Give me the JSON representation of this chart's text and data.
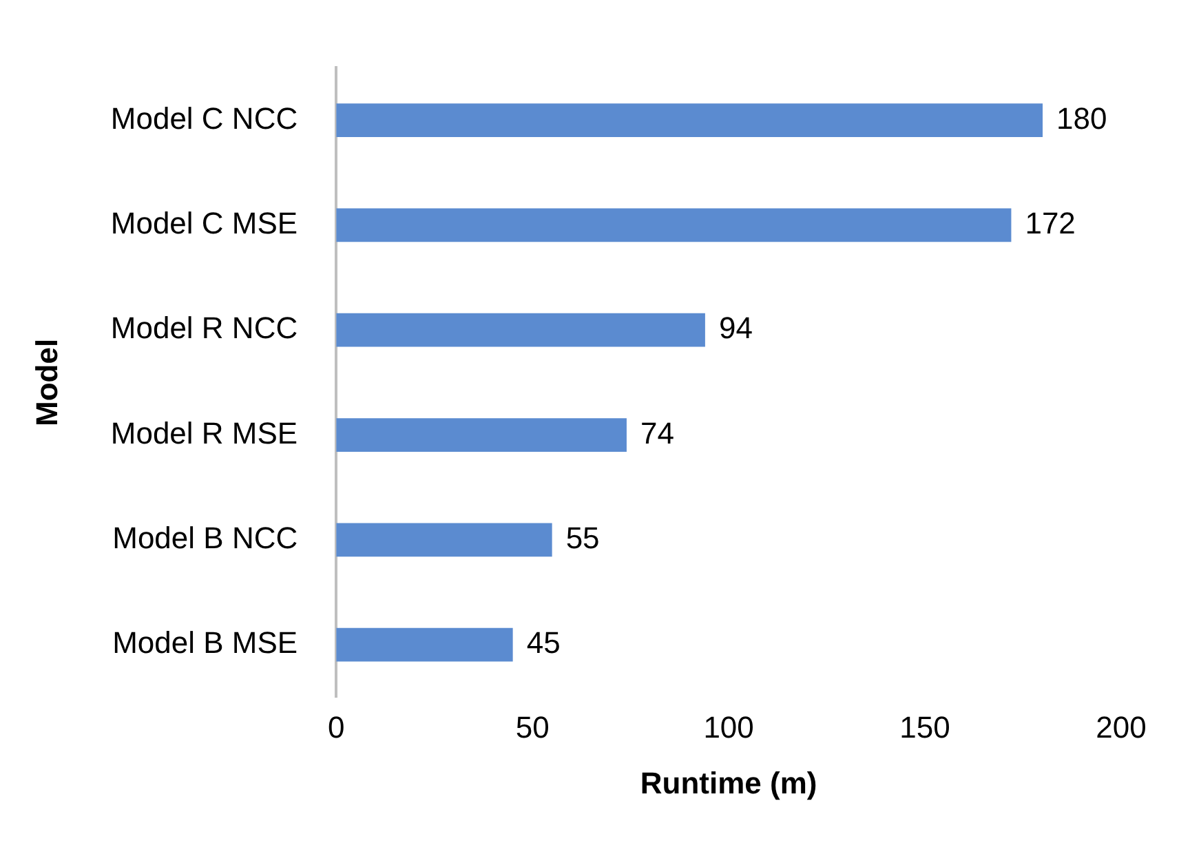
{
  "chart_data": {
    "type": "bar",
    "orientation": "horizontal",
    "xlabel": "Runtime (m)",
    "ylabel": "Model",
    "categories": [
      "Model C NCC",
      "Model C MSE",
      "Model R NCC",
      "Model R MSE",
      "Model B NCC",
      "Model B MSE"
    ],
    "values": [
      180,
      172,
      94,
      74,
      55,
      45
    ],
    "color": "#5b8bd0",
    "xlim": [
      0,
      200
    ],
    "xticks": [
      0,
      50,
      100,
      150,
      200
    ],
    "grid": false,
    "legend": false,
    "data_labels": true
  }
}
